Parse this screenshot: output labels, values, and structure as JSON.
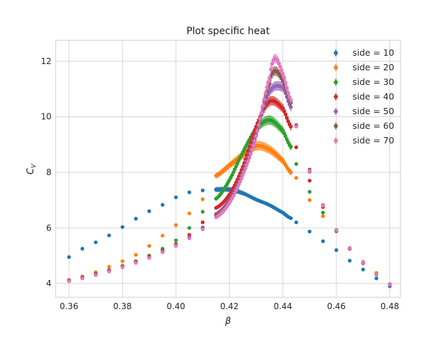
{
  "chart_data": {
    "type": "scatter",
    "title": "Plot specific heat",
    "xlabel": "β",
    "ylabel_main": "C",
    "ylabel_sub": "V",
    "xlim": [
      0.355,
      0.484
    ],
    "ylim": [
      3.5,
      12.75
    ],
    "xticks": [
      0.36,
      0.38,
      0.4,
      0.42,
      0.44,
      0.46,
      0.48
    ],
    "xtick_labels": [
      "0.36",
      "0.38",
      "0.40",
      "0.42",
      "0.44",
      "0.46",
      "0.48"
    ],
    "yticks": [
      4,
      6,
      8,
      10,
      12
    ],
    "ytick_labels": [
      "4",
      "6",
      "8",
      "10",
      "12"
    ],
    "grid": true,
    "legend_position": "top-right",
    "marker": "circle with error bars",
    "series": [
      {
        "name": "side = 10",
        "color": "#1f77b4",
        "coarse": {
          "x": [
            0.36,
            0.365,
            0.37,
            0.375,
            0.38,
            0.385,
            0.39,
            0.395,
            0.4,
            0.405,
            0.41,
            0.445,
            0.45,
            0.455,
            0.46,
            0.465,
            0.47,
            0.475,
            0.48
          ],
          "y": [
            4.95,
            5.25,
            5.48,
            5.73,
            6.03,
            6.33,
            6.6,
            6.83,
            7.1,
            7.28,
            7.35,
            6.2,
            5.87,
            5.52,
            5.2,
            4.82,
            4.5,
            4.18,
            3.9
          ]
        },
        "fine_knots": {
          "x": [
            0.415,
            0.42,
            0.425,
            0.43,
            0.435,
            0.44,
            0.443
          ],
          "y": [
            7.38,
            7.38,
            7.25,
            7.02,
            6.82,
            6.55,
            6.35
          ]
        },
        "fine_step": 0.0005
      },
      {
        "name": "side = 20",
        "color": "#ff7f0e",
        "coarse": {
          "x": [
            0.36,
            0.365,
            0.37,
            0.375,
            0.38,
            0.385,
            0.39,
            0.395,
            0.4,
            0.405,
            0.41,
            0.445,
            0.45,
            0.455,
            0.46,
            0.465,
            0.47,
            0.475,
            0.48
          ],
          "y": [
            4.1,
            4.25,
            4.4,
            4.6,
            4.8,
            5.03,
            5.35,
            5.72,
            6.1,
            6.52,
            7.03,
            7.8,
            7.0,
            6.42,
            5.88,
            5.28,
            4.78,
            4.38,
            3.98
          ]
        },
        "fine_knots": {
          "x": [
            0.415,
            0.42,
            0.425,
            0.43,
            0.435,
            0.44,
            0.443
          ],
          "y": [
            7.88,
            8.25,
            8.62,
            8.95,
            8.82,
            8.42,
            8.0
          ]
        },
        "fine_step": 0.0005
      },
      {
        "name": "side = 30",
        "color": "#2ca02c",
        "coarse": {
          "x": [
            0.36,
            0.365,
            0.37,
            0.375,
            0.38,
            0.385,
            0.39,
            0.395,
            0.4,
            0.405,
            0.41,
            0.445,
            0.45,
            0.455,
            0.46,
            0.465,
            0.47,
            0.475,
            0.48
          ],
          "y": [
            4.1,
            4.22,
            4.35,
            4.48,
            4.63,
            4.8,
            5.0,
            5.25,
            5.55,
            6.0,
            6.58,
            8.3,
            7.3,
            6.55,
            5.88,
            5.25,
            4.73,
            4.32,
            3.96
          ]
        },
        "fine_knots": {
          "x": [
            0.415,
            0.42,
            0.425,
            0.43,
            0.435,
            0.44,
            0.443
          ],
          "y": [
            7.05,
            7.72,
            8.72,
            9.55,
            9.88,
            9.5,
            8.92
          ]
        },
        "fine_step": 0.0005
      },
      {
        "name": "side = 40",
        "color": "#d62728",
        "coarse": {
          "x": [
            0.36,
            0.365,
            0.37,
            0.375,
            0.38,
            0.385,
            0.39,
            0.395,
            0.4,
            0.405,
            0.41,
            0.445,
            0.45,
            0.455,
            0.46,
            0.465,
            0.47,
            0.475,
            0.48
          ],
          "y": [
            4.12,
            4.22,
            4.34,
            4.47,
            4.62,
            4.78,
            4.97,
            5.18,
            5.42,
            5.75,
            6.2,
            8.9,
            7.7,
            6.75,
            5.92,
            5.25,
            4.73,
            4.32,
            3.96
          ]
        },
        "fine_knots": {
          "x": [
            0.415,
            0.42,
            0.425,
            0.43,
            0.435,
            0.44,
            0.443
          ],
          "y": [
            6.72,
            7.2,
            8.2,
            9.65,
            10.55,
            10.3,
            9.65
          ]
        },
        "fine_step": 0.0005
      },
      {
        "name": "side = 50",
        "color": "#9467bd",
        "coarse": {
          "x": [
            0.36,
            0.365,
            0.37,
            0.375,
            0.38,
            0.385,
            0.39,
            0.395,
            0.4,
            0.405,
            0.41,
            0.445,
            0.45,
            0.455,
            0.46,
            0.465,
            0.47,
            0.475,
            0.48
          ],
          "y": [
            4.1,
            4.2,
            4.32,
            4.45,
            4.6,
            4.76,
            4.94,
            5.15,
            5.38,
            5.67,
            6.02,
            9.7,
            8.02,
            6.8,
            5.92,
            5.25,
            4.73,
            4.32,
            3.96
          ]
        },
        "fine_knots": {
          "x": [
            0.415,
            0.42,
            0.425,
            0.43,
            0.435,
            0.44,
            0.443
          ],
          "y": [
            6.5,
            7.0,
            8.0,
            9.4,
            10.9,
            11.05,
            10.35
          ]
        },
        "fine_step": 0.0005
      },
      {
        "name": "side = 60",
        "color": "#8c564b",
        "coarse": {
          "x": [
            0.36,
            0.365,
            0.37,
            0.375,
            0.38,
            0.385,
            0.39,
            0.395,
            0.4,
            0.405,
            0.41,
            0.445,
            0.45,
            0.455,
            0.46,
            0.465,
            0.47,
            0.475,
            0.48
          ],
          "y": [
            4.1,
            4.2,
            4.32,
            4.45,
            4.6,
            4.76,
            4.94,
            5.15,
            5.38,
            5.65,
            5.98,
            9.7,
            8.1,
            6.82,
            5.92,
            5.25,
            4.73,
            4.32,
            3.96
          ]
        },
        "fine_knots": {
          "x": [
            0.415,
            0.42,
            0.425,
            0.43,
            0.435,
            0.437,
            0.44,
            0.443
          ],
          "y": [
            6.45,
            6.95,
            7.95,
            9.35,
            11.2,
            11.65,
            11.3,
            10.5
          ]
        },
        "fine_step": 0.0005
      },
      {
        "name": "side = 70",
        "color": "#e377c2",
        "coarse": {
          "x": [
            0.36,
            0.365,
            0.37,
            0.375,
            0.38,
            0.385,
            0.39,
            0.395,
            0.4,
            0.405,
            0.41,
            0.445,
            0.45,
            0.455,
            0.46,
            0.465,
            0.47,
            0.475,
            0.48
          ],
          "y": [
            4.08,
            4.18,
            4.3,
            4.43,
            4.58,
            4.74,
            4.92,
            5.12,
            5.35,
            5.62,
            5.95,
            9.65,
            8.05,
            6.8,
            5.92,
            5.27,
            4.75,
            4.32,
            3.96
          ]
        },
        "fine_knots": {
          "x": [
            0.415,
            0.42,
            0.425,
            0.43,
            0.435,
            0.437,
            0.44,
            0.443
          ],
          "y": [
            6.38,
            6.9,
            7.9,
            9.3,
            11.4,
            12.1,
            11.55,
            10.6
          ]
        },
        "fine_step": 0.0005
      }
    ]
  }
}
